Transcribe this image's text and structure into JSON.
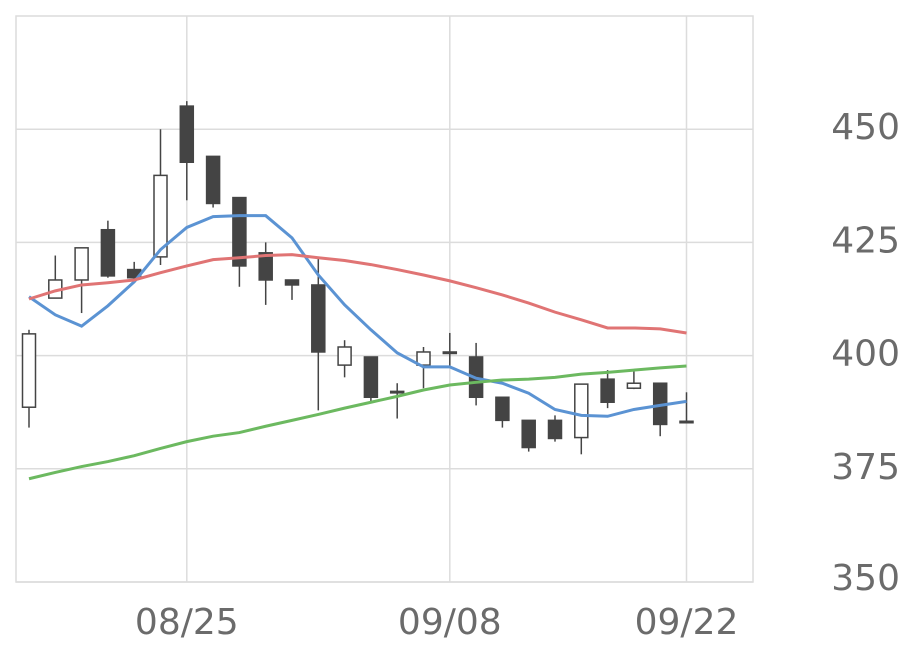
{
  "chart_data": {
    "type": "candlestick",
    "categories": [
      null,
      null,
      null,
      null,
      null,
      null,
      "08/25",
      null,
      null,
      null,
      null,
      null,
      null,
      null,
      null,
      null,
      "09/08",
      null,
      null,
      null,
      null,
      null,
      null,
      null,
      null,
      "09/22"
    ],
    "open": [
      388.6,
      412.7,
      416.7,
      427.8,
      419.0,
      421.8,
      455.1,
      444.0,
      434.9,
      422.7,
      416.7,
      415.6,
      397.9,
      399.7,
      391.9,
      397.9,
      400.8,
      399.7,
      390.8,
      385.7,
      385.7,
      381.9,
      394.8,
      392.8,
      393.9,
      385.5
    ],
    "high": [
      405.7,
      422.1,
      423.8,
      429.8,
      420.7,
      450.0,
      456.2,
      444.0,
      434.9,
      425.0,
      416.7,
      421.6,
      403.4,
      399.7,
      393.9,
      401.9,
      405.0,
      402.8,
      390.8,
      385.7,
      386.8,
      393.7,
      396.8,
      396.6,
      393.9,
      391.9
    ],
    "low": [
      384.1,
      412.7,
      409.4,
      417.2,
      416.7,
      420.0,
      434.3,
      432.7,
      415.2,
      411.2,
      412.3,
      387.9,
      395.2,
      389.9,
      386.1,
      392.8,
      397.5,
      389.0,
      384.1,
      378.8,
      381.0,
      378.2,
      388.4,
      392.6,
      382.2,
      385.5
    ],
    "close": [
      404.8,
      416.7,
      423.8,
      417.6,
      417.2,
      439.8,
      442.7,
      433.6,
      419.8,
      416.7,
      415.6,
      400.8,
      401.9,
      390.8,
      392.1,
      400.8,
      400.8,
      390.8,
      385.7,
      379.7,
      381.7,
      393.7,
      389.7,
      393.9,
      384.8,
      385.5
    ],
    "up_color": "#ffffff",
    "down_color": "#444444",
    "wick_color": "#444444",
    "lines": [
      {
        "color": "#5b93d3",
        "values": [
          413.0,
          409.0,
          406.5,
          411.0,
          416.3,
          423.4,
          428.3,
          430.7,
          430.9,
          430.9,
          426.0,
          417.8,
          411.2,
          405.7,
          400.6,
          397.5,
          397.5,
          395.0,
          393.9,
          391.7,
          388.1,
          386.8,
          386.6,
          388.1,
          389.0,
          389.9
        ]
      },
      {
        "color": "#e07474",
        "values": [
          412.5,
          414.3,
          415.6,
          416.1,
          416.7,
          418.3,
          419.8,
          421.2,
          421.6,
          422.1,
          422.3,
          421.6,
          421.0,
          420.1,
          419.0,
          417.8,
          416.5,
          415.0,
          413.4,
          411.6,
          409.6,
          407.9,
          406.1,
          406.1,
          405.9,
          405.0
        ]
      },
      {
        "color": "#6cb960",
        "values": [
          372.8,
          374.2,
          375.5,
          376.6,
          377.9,
          379.5,
          381.0,
          382.2,
          383.0,
          384.4,
          385.7,
          387.0,
          388.4,
          389.7,
          391.0,
          392.4,
          393.5,
          394.1,
          394.6,
          394.8,
          395.2,
          395.9,
          396.3,
          396.8,
          397.3,
          397.7
        ]
      }
    ],
    "ylim": [
      350,
      475
    ],
    "yticks": [
      350,
      375,
      400,
      425,
      450
    ],
    "y_axis_side": "right",
    "grid": true
  }
}
